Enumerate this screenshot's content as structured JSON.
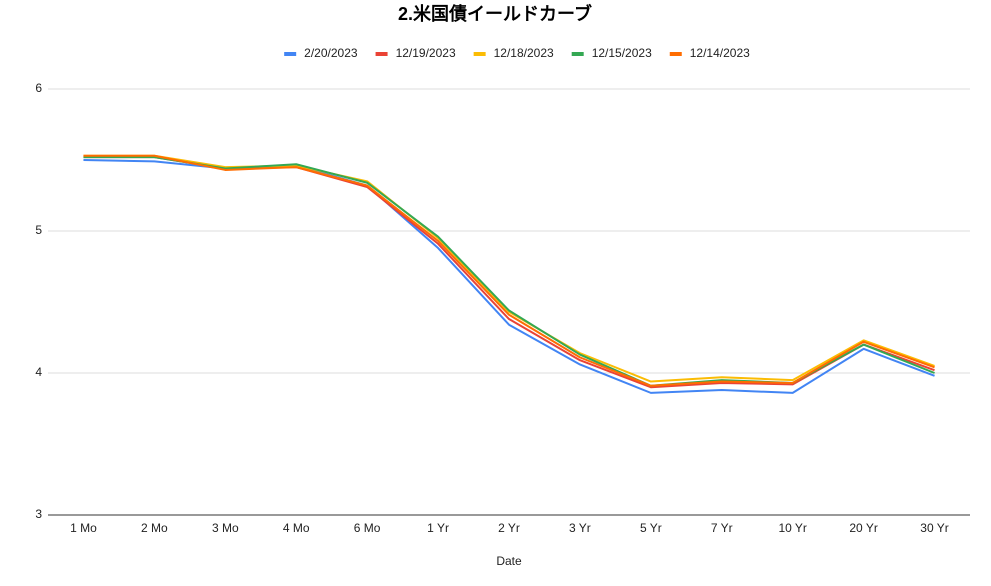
{
  "chart_data": {
    "type": "line",
    "title": "2.米国債イールドカーブ",
    "x_label": "Date",
    "categories": [
      "1 Mo",
      "2 Mo",
      "3 Mo",
      "4 Mo",
      "6 Mo",
      "1 Yr",
      "2 Yr",
      "3 Yr",
      "5 Yr",
      "7 Yr",
      "10 Yr",
      "20 Yr",
      "30 Yr"
    ],
    "series": [
      {
        "name": "2/20/2023",
        "color": "#4285f4",
        "values": [
          5.5,
          5.49,
          5.44,
          5.46,
          5.32,
          4.88,
          4.34,
          4.06,
          3.86,
          3.88,
          3.86,
          4.17,
          3.98
        ]
      },
      {
        "name": "12/19/2023",
        "color": "#ea4335",
        "values": [
          5.52,
          5.52,
          5.44,
          5.45,
          5.31,
          4.91,
          4.38,
          4.09,
          3.9,
          3.93,
          3.92,
          4.2,
          4.02
        ]
      },
      {
        "name": "12/18/2023",
        "color": "#fbbc04",
        "values": [
          5.53,
          5.53,
          5.45,
          5.46,
          5.35,
          4.95,
          4.43,
          4.14,
          3.94,
          3.97,
          3.95,
          4.23,
          4.05
        ]
      },
      {
        "name": "12/15/2023",
        "color": "#34a853",
        "values": [
          5.52,
          5.52,
          5.44,
          5.47,
          5.34,
          4.96,
          4.44,
          4.13,
          3.91,
          3.95,
          3.93,
          4.2,
          4.0
        ]
      },
      {
        "name": "12/14/2023",
        "color": "#ff6d01",
        "values": [
          5.53,
          5.53,
          5.43,
          5.45,
          5.32,
          4.93,
          4.41,
          4.11,
          3.91,
          3.94,
          3.93,
          4.22,
          4.04
        ]
      }
    ],
    "ylim": [
      3,
      6
    ],
    "yticks": [
      3,
      4,
      5,
      6
    ],
    "grid": true,
    "legend": "top"
  }
}
